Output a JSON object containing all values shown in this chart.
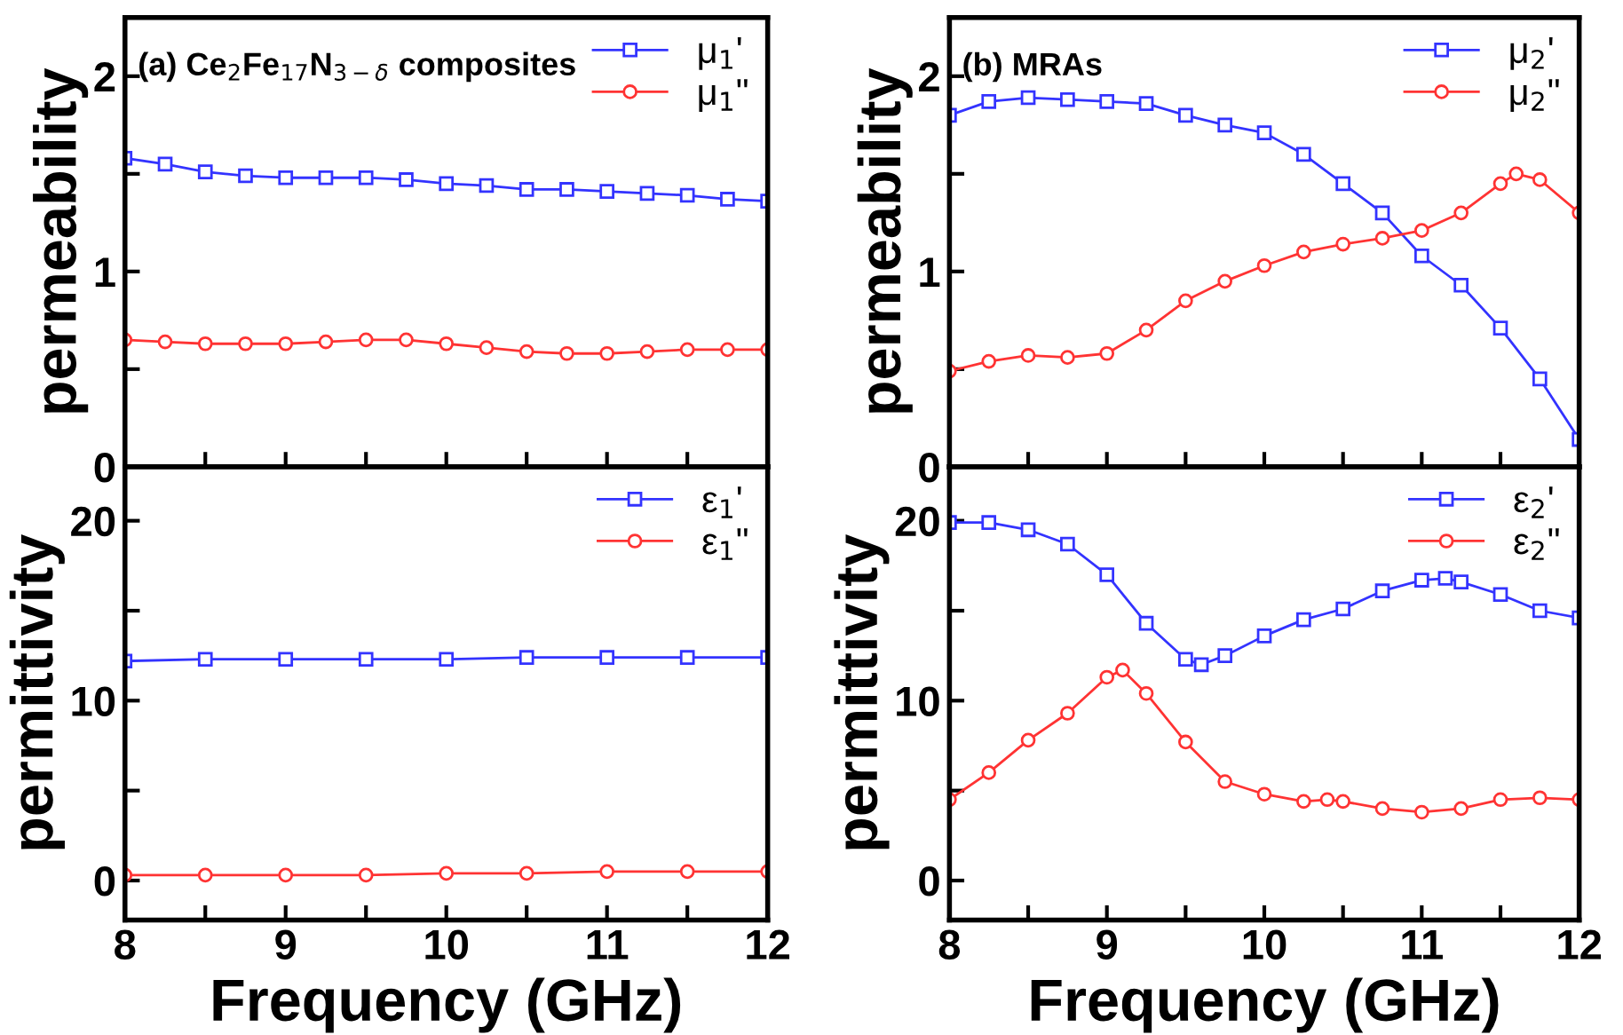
{
  "chart_data": [
    {
      "type": "line",
      "title": "(a) Ce$_{2}$Fe$_{17}$N$_{3−δ}$ composites",
      "ylabel": "permeability",
      "xlim": [
        8,
        12
      ],
      "ylim": [
        0,
        2.3
      ],
      "xticks": [
        8,
        {
          "value": 8.5,
          "label": null
        },
        9,
        {
          "value": 9.5,
          "label": null
        },
        10,
        {
          "value": 10.5,
          "label": null
        },
        11,
        {
          "value": 11.5,
          "label": null
        },
        12
      ],
      "yticks": [
        0,
        {
          "value": 0.5,
          "label": null
        },
        1,
        {
          "value": 1.5,
          "label": null
        },
        2
      ],
      "tick_labels": "y",
      "legend": "top right",
      "grid": false,
      "series": [
        {
          "name": "μ$_{1}$'",
          "color": "#3333ff",
          "marker": "square",
          "x": [
            8,
            8.25,
            8.5,
            8.75,
            9,
            9.25,
            9.5,
            9.75,
            10,
            10.25,
            10.5,
            10.75,
            11,
            11.25,
            11.5,
            11.75,
            12
          ],
          "values": [
            1.58,
            1.55,
            1.51,
            1.49,
            1.48,
            1.48,
            1.48,
            1.47,
            1.45,
            1.44,
            1.42,
            1.42,
            1.41,
            1.4,
            1.39,
            1.37,
            1.36
          ]
        },
        {
          "name": "μ$_{1}$\"",
          "color": "#ff3333",
          "marker": "circle",
          "x": [
            8,
            8.25,
            8.5,
            8.75,
            9,
            9.25,
            9.5,
            9.75,
            10,
            10.25,
            10.5,
            10.75,
            11,
            11.25,
            11.5,
            11.75,
            12
          ],
          "values": [
            0.65,
            0.64,
            0.63,
            0.63,
            0.63,
            0.64,
            0.65,
            0.65,
            0.63,
            0.61,
            0.59,
            0.58,
            0.58,
            0.59,
            0.6,
            0.6,
            0.6
          ]
        }
      ]
    },
    {
      "type": "line",
      "title": "(b) MRAs",
      "ylabel": "permeability",
      "xlim": [
        8,
        12
      ],
      "ylim": [
        0,
        2.3
      ],
      "xticks": [
        8,
        {
          "value": 8.5,
          "label": null
        },
        9,
        {
          "value": 9.5,
          "label": null
        },
        10,
        {
          "value": 10.5,
          "label": null
        },
        11,
        {
          "value": 11.5,
          "label": null
        },
        12
      ],
      "yticks": [
        0,
        {
          "value": 0.5,
          "label": null
        },
        1,
        {
          "value": 1.5,
          "label": null
        },
        2
      ],
      "tick_labels": "y",
      "legend": "top right",
      "grid": false,
      "series": [
        {
          "name": "μ$_{2}$'",
          "color": "#3333ff",
          "marker": "square",
          "x": [
            8,
            8.25,
            8.5,
            8.75,
            9,
            9.25,
            9.5,
            9.75,
            10,
            10.25,
            10.5,
            10.75,
            11,
            11.25,
            11.5,
            11.75,
            12
          ],
          "values": [
            1.8,
            1.87,
            1.89,
            1.88,
            1.87,
            1.86,
            1.8,
            1.75,
            1.71,
            1.6,
            1.45,
            1.3,
            1.08,
            0.93,
            0.71,
            0.45,
            0.14
          ]
        },
        {
          "name": "μ$_{2}$\"",
          "color": "#ff3333",
          "marker": "circle",
          "x": [
            8,
            8.25,
            8.5,
            8.75,
            9,
            9.25,
            9.5,
            9.75,
            10,
            10.25,
            10.5,
            10.75,
            11,
            11.25,
            11.5,
            11.6,
            11.75,
            12
          ],
          "values": [
            0.49,
            0.54,
            0.57,
            0.56,
            0.58,
            0.7,
            0.85,
            0.95,
            1.03,
            1.1,
            1.14,
            1.17,
            1.21,
            1.3,
            1.45,
            1.5,
            1.47,
            1.3
          ]
        }
      ]
    },
    {
      "type": "line",
      "xlabel": "Frequency (GHz)",
      "ylabel": "permittivity",
      "xlim": [
        8,
        12
      ],
      "ylim": [
        -2.2,
        23
      ],
      "xticks": [
        8,
        {
          "value": 8.5,
          "label": null
        },
        9,
        {
          "value": 9.5,
          "label": null
        },
        10,
        {
          "value": 10.5,
          "label": null
        },
        11,
        {
          "value": 11.5,
          "label": null
        },
        12
      ],
      "yticks": [
        0,
        {
          "value": 5,
          "label": null
        },
        10,
        {
          "value": 15,
          "label": null
        },
        20
      ],
      "legend": "top right",
      "grid": false,
      "series": [
        {
          "name": "ε$_{1}$'",
          "color": "#3333ff",
          "marker": "square",
          "x": [
            8,
            8.5,
            9,
            9.5,
            10,
            10.5,
            11,
            11.5,
            12
          ],
          "values": [
            12.2,
            12.3,
            12.3,
            12.3,
            12.3,
            12.4,
            12.4,
            12.4,
            12.4
          ]
        },
        {
          "name": "ε$_{1}$\"",
          "color": "#ff3333",
          "marker": "circle",
          "x": [
            8,
            8.5,
            9,
            9.5,
            10,
            10.5,
            11,
            11.5,
            12
          ],
          "values": [
            0.3,
            0.3,
            0.3,
            0.3,
            0.4,
            0.4,
            0.5,
            0.5,
            0.5
          ]
        }
      ]
    },
    {
      "type": "line",
      "xlabel": "Frequency (GHz)",
      "ylabel": "permittivity",
      "xlim": [
        8,
        12
      ],
      "ylim": [
        -2.2,
        23
      ],
      "xticks": [
        8,
        {
          "value": 8.5,
          "label": null
        },
        9,
        {
          "value": 9.5,
          "label": null
        },
        10,
        {
          "value": 10.5,
          "label": null
        },
        11,
        {
          "value": 11.5,
          "label": null
        },
        12
      ],
      "yticks": [
        0,
        {
          "value": 5,
          "label": null
        },
        10,
        {
          "value": 15,
          "label": null
        },
        20
      ],
      "legend": "top right",
      "grid": false,
      "series": [
        {
          "name": "ε$_{2}$'",
          "color": "#3333ff",
          "marker": "square",
          "x": [
            8,
            8.25,
            8.5,
            8.75,
            9,
            9.25,
            9.5,
            9.6,
            9.75,
            10,
            10.25,
            10.5,
            10.75,
            11,
            11.15,
            11.25,
            11.5,
            11.75,
            12
          ],
          "values": [
            19.9,
            19.9,
            19.5,
            18.7,
            17,
            14.3,
            12.3,
            12,
            12.5,
            13.6,
            14.5,
            15.1,
            16.1,
            16.7,
            16.8,
            16.6,
            15.9,
            15,
            14.6
          ]
        },
        {
          "name": "ε$_{2}$\"",
          "color": "#ff3333",
          "marker": "circle",
          "x": [
            8,
            8.25,
            8.5,
            8.75,
            9,
            9.1,
            9.25,
            9.5,
            9.75,
            10,
            10.25,
            10.4,
            10.5,
            10.75,
            11,
            11.25,
            11.5,
            11.75,
            12
          ],
          "values": [
            4.5,
            6,
            7.8,
            9.3,
            11.3,
            11.7,
            10.4,
            7.7,
            5.5,
            4.8,
            4.4,
            4.5,
            4.4,
            4,
            3.8,
            4,
            4.5,
            4.6,
            4.5
          ]
        }
      ]
    }
  ]
}
